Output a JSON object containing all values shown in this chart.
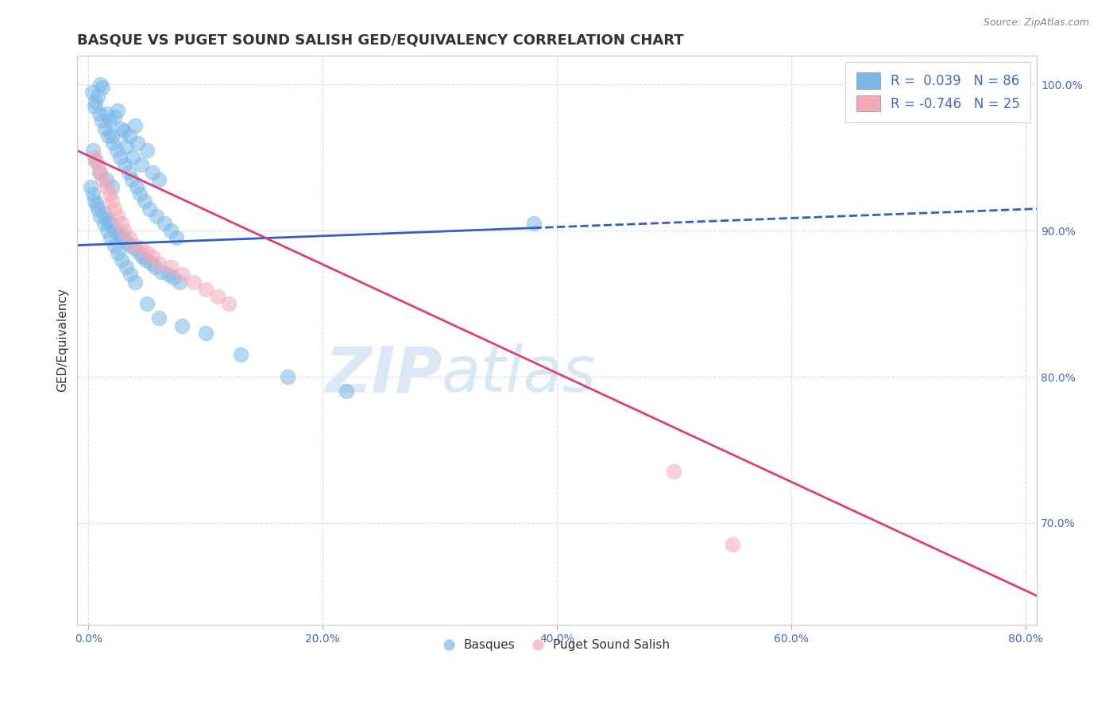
{
  "title": "BASQUE VS PUGET SOUND SALISH GED/EQUIVALENCY CORRELATION CHART",
  "source": "Source: ZipAtlas.com",
  "ylabel": "GED/Equivalency",
  "x_tick_labels": [
    "0.0%",
    "20.0%",
    "40.0%",
    "60.0%",
    "80.0%"
  ],
  "x_tick_values": [
    0.0,
    20.0,
    40.0,
    60.0,
    80.0
  ],
  "y_tick_labels": [
    "100.0%",
    "90.0%",
    "80.0%",
    "70.0%"
  ],
  "y_tick_values": [
    100.0,
    90.0,
    80.0,
    70.0
  ],
  "xlim": [
    -1,
    81
  ],
  "ylim": [
    63,
    102
  ],
  "legend_label_blue": "R =  0.039   N = 86",
  "legend_label_pink": "R = -0.746   N = 25",
  "blue_color": "#7ab8e8",
  "pink_color": "#f5a8b8",
  "blue_line_color": "#3060c0",
  "pink_line_color": "#e04070",
  "legend_blue_label": "Basques",
  "legend_pink_label": "Puget Sound Salish",
  "watermark": "ZIPatlas",
  "title_fontsize": 13,
  "axis_label_fontsize": 11,
  "tick_fontsize": 10,
  "basque_x": [
    0.5,
    0.8,
    1.0,
    1.2,
    1.5,
    1.8,
    2.0,
    2.2,
    2.5,
    2.8,
    3.0,
    3.2,
    3.5,
    3.8,
    4.0,
    4.2,
    4.5,
    5.0,
    5.5,
    6.0,
    0.3,
    0.6,
    0.9,
    1.1,
    1.4,
    1.7,
    2.1,
    2.4,
    2.7,
    3.1,
    3.4,
    3.7,
    4.1,
    4.4,
    4.8,
    5.2,
    5.8,
    6.5,
    7.0,
    7.5,
    0.4,
    0.7,
    1.3,
    1.6,
    1.9,
    2.3,
    2.6,
    2.9,
    3.3,
    3.6,
    3.9,
    4.3,
    4.6,
    4.9,
    5.3,
    5.7,
    6.2,
    6.8,
    7.2,
    7.8,
    0.2,
    0.5,
    0.8,
    1.0,
    1.3,
    1.6,
    1.9,
    2.2,
    2.5,
    2.8,
    3.2,
    3.6,
    4.0,
    5.0,
    6.0,
    8.0,
    10.0,
    13.0,
    17.0,
    22.0,
    0.4,
    0.6,
    0.9,
    1.5,
    2.0,
    38.0
  ],
  "basque_y": [
    98.5,
    99.2,
    100.0,
    99.8,
    98.0,
    97.5,
    96.5,
    97.8,
    98.2,
    97.0,
    96.8,
    95.8,
    96.5,
    95.0,
    97.2,
    96.0,
    94.5,
    95.5,
    94.0,
    93.5,
    99.5,
    98.8,
    98.0,
    97.5,
    97.0,
    96.5,
    96.0,
    95.5,
    95.0,
    94.5,
    94.0,
    93.5,
    93.0,
    92.5,
    92.0,
    91.5,
    91.0,
    90.5,
    90.0,
    89.5,
    92.5,
    91.8,
    91.2,
    90.8,
    90.5,
    90.0,
    89.8,
    89.5,
    89.2,
    89.0,
    88.8,
    88.5,
    88.2,
    88.0,
    87.8,
    87.5,
    87.2,
    87.0,
    86.8,
    86.5,
    93.0,
    92.0,
    91.5,
    91.0,
    90.5,
    90.0,
    89.5,
    89.0,
    88.5,
    88.0,
    87.5,
    87.0,
    86.5,
    85.0,
    84.0,
    83.5,
    83.0,
    81.5,
    80.0,
    79.0,
    95.5,
    94.8,
    94.0,
    93.5,
    93.0,
    90.5
  ],
  "salish_x": [
    0.5,
    0.8,
    1.0,
    1.2,
    1.5,
    1.8,
    2.0,
    2.2,
    2.5,
    2.8,
    3.0,
    3.5,
    4.0,
    4.5,
    5.0,
    5.5,
    6.0,
    7.0,
    8.0,
    9.0,
    10.0,
    11.0,
    12.0,
    50.0,
    55.0
  ],
  "salish_y": [
    95.0,
    94.5,
    94.0,
    93.5,
    93.0,
    92.5,
    92.0,
    91.5,
    91.0,
    90.5,
    90.0,
    89.5,
    89.0,
    88.8,
    88.5,
    88.2,
    87.8,
    87.5,
    87.0,
    86.5,
    86.0,
    85.5,
    85.0,
    73.5,
    68.5
  ],
  "blue_trend_x": [
    -1,
    81
  ],
  "blue_trend_y": [
    89.0,
    91.5
  ],
  "pink_trend_x": [
    -1,
    81
  ],
  "pink_trend_y": [
    95.5,
    65.0
  ]
}
